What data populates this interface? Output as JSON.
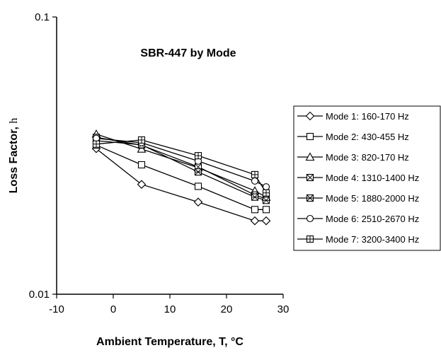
{
  "chart_data": {
    "type": "line",
    "title": "SBR-447 by Mode",
    "xlabel": "Ambient Temperature, T, °C",
    "ylabel": "Loss Factor, η",
    "ylabel_main": "Loss Factor, ",
    "ylabel_symbol": "h",
    "xlim": [
      -10,
      30
    ],
    "ylim": [
      0.01,
      0.1
    ],
    "yscale": "log",
    "grid": false,
    "legend_position": "right",
    "x_ticks": [
      {
        "value": -10,
        "label": "-10"
      },
      {
        "value": 0,
        "label": "0"
      },
      {
        "value": 10,
        "label": "10"
      },
      {
        "value": 20,
        "label": "20"
      },
      {
        "value": 30,
        "label": "30"
      }
    ],
    "y_ticks": [
      {
        "value": 0.01,
        "label": "0.01"
      },
      {
        "value": 0.1,
        "label": "0.1"
      }
    ],
    "series": [
      {
        "name": "Mode 1: 160-170 Hz",
        "marker": "diamond",
        "x": [
          -3,
          5,
          15,
          25,
          27
        ],
        "y": [
          0.0335,
          0.0249,
          0.0215,
          0.0184,
          0.0184
        ]
      },
      {
        "name": "Mode 2: 430-455 Hz",
        "marker": "square",
        "x": [
          -3,
          5,
          15,
          25,
          27
        ],
        "y": [
          0.0345,
          0.0293,
          0.0245,
          0.0202,
          0.0202
        ]
      },
      {
        "name": "Mode 3: 820-170 Hz",
        "marker": "triangle",
        "x": [
          -3,
          5,
          15,
          25,
          27
        ],
        "y": [
          0.0378,
          0.0334,
          0.0286,
          0.0236,
          0.0224
        ]
      },
      {
        "name": "Mode 4: 1310-1400 Hz",
        "marker": "square-x",
        "x": [
          -3,
          5,
          15,
          25,
          27
        ],
        "y": [
          0.0368,
          0.0345,
          0.0288,
          0.0228,
          0.0221
        ]
      },
      {
        "name": "Mode 5: 1880-2000 Hz",
        "marker": "square-cross",
        "x": [
          -3,
          5,
          15,
          25,
          27
        ],
        "y": [
          0.0358,
          0.0346,
          0.0276,
          0.0224,
          0.0218
        ]
      },
      {
        "name": "Mode 6: 2510-2670 Hz",
        "marker": "circle",
        "x": [
          -3,
          5,
          15,
          25,
          27
        ],
        "y": [
          0.0365,
          0.0352,
          0.0302,
          0.0256,
          0.0244
        ]
      },
      {
        "name": "Mode 7: 3200-3400 Hz",
        "marker": "square-plus",
        "x": [
          -3,
          5,
          15,
          25,
          27
        ],
        "y": [
          0.0348,
          0.036,
          0.0316,
          0.027,
          0.0232
        ]
      }
    ]
  }
}
